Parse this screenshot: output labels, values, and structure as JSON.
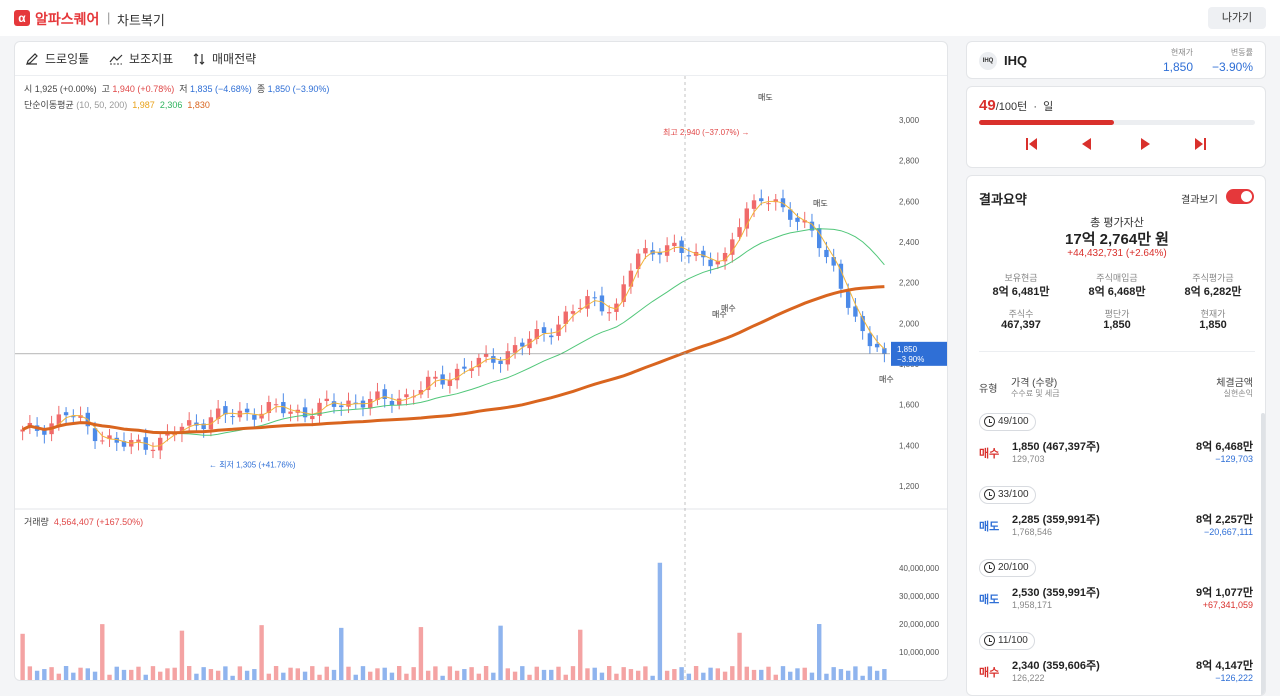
{
  "app": {
    "brand": "알파스퀘어",
    "logo_letter": "α",
    "separator": "|",
    "page_title": "차트복기",
    "exit_label": "나가기"
  },
  "toolbar": {
    "draw_label": "드로잉툴",
    "indicator_label": "보조지표",
    "strategy_label": "매매전략"
  },
  "ohlc": {
    "open_label": "시",
    "open": "1,925 (+0.00%)",
    "high_label": "고",
    "high": "1,940 (+0.78%)",
    "low_label": "저",
    "low": "1,835 (−4.68%)",
    "close_label": "종",
    "close": "1,850 (−3.90%)"
  },
  "ma": {
    "label": "단순이동평균",
    "params": "(10, 50, 200)",
    "v10": "1,987",
    "v50": "2,306",
    "v200": "1,830"
  },
  "volume": {
    "label": "거래량",
    "value": "4,564,407 (+167.50%)"
  },
  "chart_data": {
    "type": "candlestick",
    "price_ticks": [
      "3,000",
      "2,800",
      "2,600",
      "2,400",
      "2,200",
      "2,000",
      "1,800",
      "1,600",
      "1,400",
      "1,200"
    ],
    "volume_ticks": [
      "40,000,000",
      "30,000,000",
      "20,000,000",
      "10,000,000"
    ],
    "current_price_tag": "1,850",
    "current_change_tag": "−3.90%",
    "annotations": {
      "high": "최고 2,940 (−37.07%) →",
      "low": "← 최저 1,305 (+41.76%)",
      "sell_1": "매도",
      "sell_2": "매도",
      "buy_1": "매수",
      "buy_2": "매수",
      "buy_3": "매수"
    },
    "colors": {
      "up": "#f06a6a",
      "down": "#4c8ae8",
      "ma10": "#f2b43a",
      "ma50": "#52c77a",
      "ma200": "#d9651f",
      "vol_up": "#f4a3a3",
      "vol_down": "#8fb4ee"
    }
  },
  "stock": {
    "icon_text": "IHQ",
    "ticker": "IHQ",
    "current_label": "현재가",
    "current": "1,850",
    "change_label": "변동률",
    "change": "−3.90%"
  },
  "turn": {
    "current": "49",
    "total": "/100턴",
    "dot": "·",
    "period": "일",
    "progress": 0.49
  },
  "controls": {
    "first": "first-icon",
    "prev": "prev-icon",
    "next": "next-icon",
    "last": "last-icon"
  },
  "summary": {
    "title": "결과요약",
    "toggle_label": "결과보기",
    "toggle_on": true,
    "total_label": "총 평가자산",
    "total_value": "17억 2,764만 원",
    "total_change": "+44,432,731 (+2.64%)",
    "cells": [
      {
        "label": "보유현금",
        "value": "8억 6,481만"
      },
      {
        "label": "주식매입금",
        "value": "8억 6,468만"
      },
      {
        "label": "주식평가금",
        "value": "8억 6,282만"
      },
      {
        "label": "주식수",
        "value": "467,397"
      },
      {
        "label": "평단가",
        "value": "1,850"
      },
      {
        "label": "현재가",
        "value": "1,850"
      }
    ],
    "header": {
      "type": "유형",
      "price": "가격 (수량)",
      "fee": "수수료 및 세금",
      "amount": "체결금액",
      "pl": "실현손익"
    },
    "trades": [
      {
        "turn": "49/100",
        "type": "매수",
        "price": "1,850 (467,397주)",
        "fee": "129,703",
        "amount": "8억 6,468만",
        "pl": "−129,703",
        "pl_color": "#2f6fd6"
      },
      {
        "turn": "33/100",
        "type": "매도",
        "price": "2,285 (359,991주)",
        "fee": "1,768,546",
        "amount": "8억 2,257만",
        "pl": "−20,667,111",
        "pl_color": "#2f6fd6"
      },
      {
        "turn": "20/100",
        "type": "매도",
        "price": "2,530 (359,991주)",
        "fee": "1,958,171",
        "amount": "9억 1,077만",
        "pl": "+67,341,059",
        "pl_color": "#d9302c"
      },
      {
        "turn": "11/100",
        "type": "매수",
        "price": "2,340 (359,606주)",
        "fee": "126,222",
        "amount": "8억 4,147만",
        "pl": "−126,222",
        "pl_color": "#2f6fd6"
      }
    ]
  }
}
